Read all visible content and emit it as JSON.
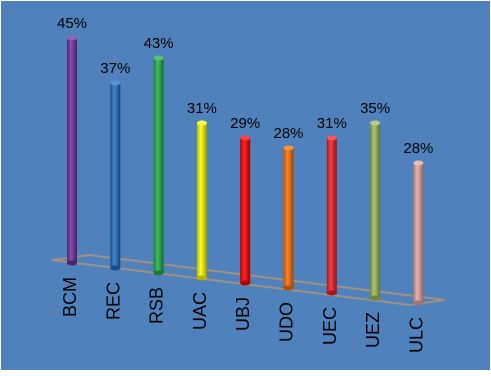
{
  "chart_data": {
    "type": "bar",
    "title": "",
    "xlabel": "",
    "ylabel": "",
    "grid": false,
    "legend": "none",
    "unit_suffix": "%",
    "categories": [
      "BCM",
      "REC",
      "RSB",
      "UAC",
      "UBJ",
      "UDO",
      "UEC",
      "UEZ",
      "ULC"
    ],
    "values": [
      45,
      37,
      43,
      31,
      29,
      28,
      31,
      35,
      28
    ],
    "value_labels": [
      "45%",
      "37%",
      "43%",
      "31%",
      "29%",
      "28%",
      "31%",
      "35%",
      "28%"
    ],
    "bar_colors": [
      "#7030a0",
      "#1f6fc4",
      "#22b04a",
      "#ffff00",
      "#ff0000",
      "#ff7000",
      "#ee1c24",
      "#9bbb59",
      "#e8a7a0"
    ],
    "background_color": "#4f81bd"
  }
}
